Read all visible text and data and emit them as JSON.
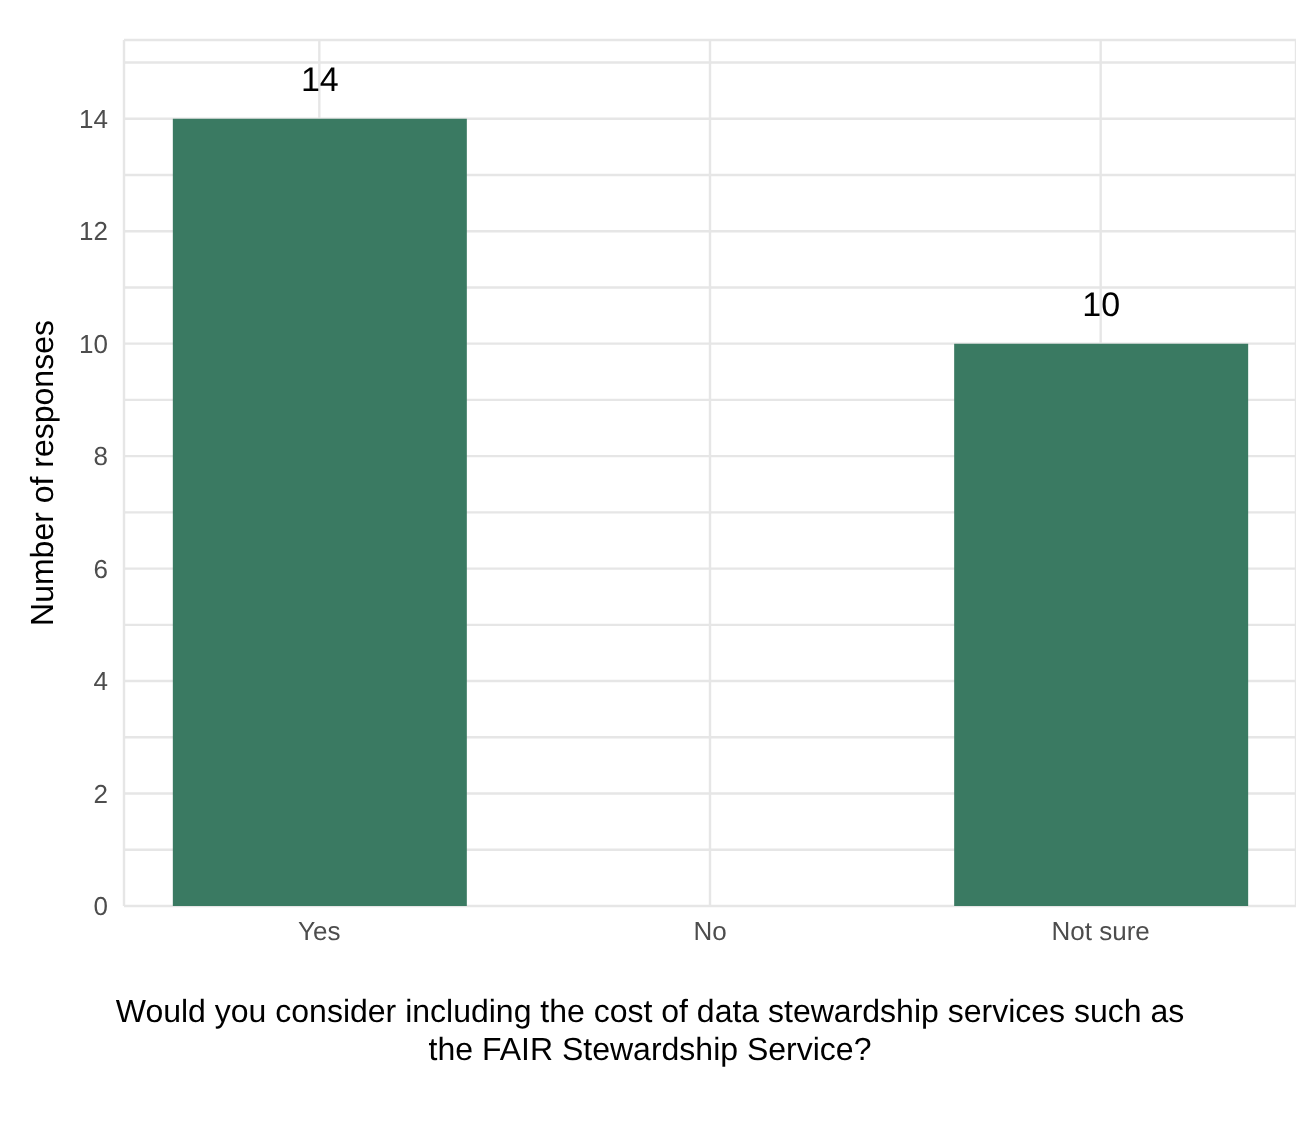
{
  "chart_data": {
    "type": "bar",
    "xlabel": "Would you consider including the cost of data stewardship services such as the FAIR Stewardship Service?",
    "ylabel": "Number of responses",
    "categories": [
      "Yes",
      "No",
      "Not sure"
    ],
    "values": [
      14,
      null,
      10
    ],
    "color": "#3a7a62",
    "value_labels": [
      "14",
      null,
      "10"
    ],
    "ylim": [
      0,
      15.4
    ],
    "yticks": [
      0,
      {
        "value": 1,
        "label": null
      },
      2,
      {
        "value": 3,
        "label": null
      },
      4,
      {
        "value": 5,
        "label": null
      },
      6,
      {
        "value": 7,
        "label": null
      },
      8,
      {
        "value": 9,
        "label": null
      },
      10,
      {
        "value": 11,
        "label": null
      },
      12,
      {
        "value": 13,
        "label": null
      },
      14,
      {
        "value": 15,
        "label": null
      }
    ],
    "grid": true,
    "legend": false
  }
}
